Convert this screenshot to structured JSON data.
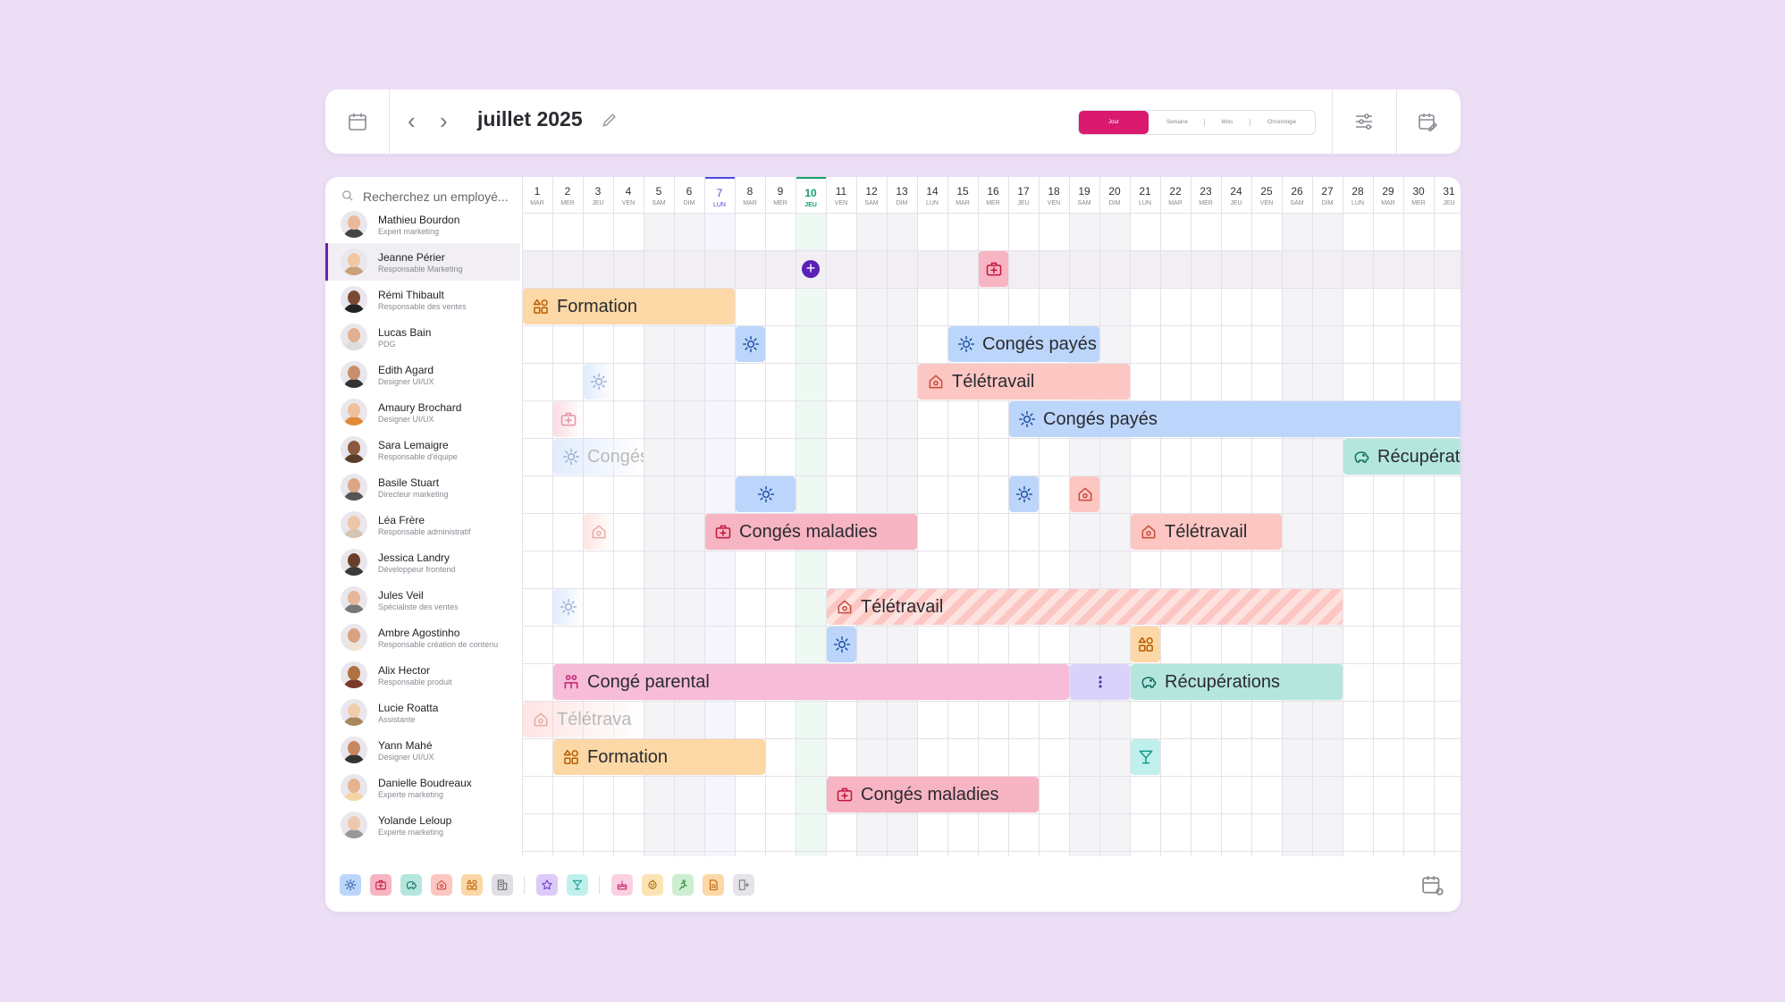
{
  "header": {
    "title": "juillet 2025",
    "views": [
      {
        "label": "Jour",
        "active": true
      },
      {
        "label": "Semaine",
        "active": false
      },
      {
        "label": "Mois",
        "active": false
      },
      {
        "label": "Chronologie",
        "active": false
      }
    ]
  },
  "search": {
    "placeholder": "Recherchez un employé..."
  },
  "days": [
    {
      "n": "1",
      "d": "MAR"
    },
    {
      "n": "2",
      "d": "MER"
    },
    {
      "n": "3",
      "d": "JEU"
    },
    {
      "n": "4",
      "d": "VEN"
    },
    {
      "n": "5",
      "d": "SAM"
    },
    {
      "n": "6",
      "d": "DIM"
    },
    {
      "n": "7",
      "d": "LUN"
    },
    {
      "n": "8",
      "d": "MAR"
    },
    {
      "n": "9",
      "d": "MER"
    },
    {
      "n": "10",
      "d": "JEU"
    },
    {
      "n": "11",
      "d": "VEN"
    },
    {
      "n": "12",
      "d": "SAM"
    },
    {
      "n": "13",
      "d": "DIM"
    },
    {
      "n": "14",
      "d": "LUN"
    },
    {
      "n": "15",
      "d": "MAR"
    },
    {
      "n": "16",
      "d": "MER"
    },
    {
      "n": "17",
      "d": "JEU"
    },
    {
      "n": "18",
      "d": "VEN"
    },
    {
      "n": "19",
      "d": "SAM"
    },
    {
      "n": "20",
      "d": "DIM"
    },
    {
      "n": "21",
      "d": "LUN"
    },
    {
      "n": "22",
      "d": "MAR"
    },
    {
      "n": "23",
      "d": "MER"
    },
    {
      "n": "24",
      "d": "JEU"
    },
    {
      "n": "25",
      "d": "VEN"
    },
    {
      "n": "26",
      "d": "SAM"
    },
    {
      "n": "27",
      "d": "DIM"
    },
    {
      "n": "28",
      "d": "LUN"
    },
    {
      "n": "29",
      "d": "MAR"
    },
    {
      "n": "30",
      "d": "MER"
    },
    {
      "n": "31",
      "d": "JEU"
    }
  ],
  "today_day": 10,
  "monday_marked": 7,
  "employees": [
    {
      "name": "Mathieu Bourdon",
      "role": "Expert marketing"
    },
    {
      "name": "Jeanne Périer",
      "role": "Responsable Marketing",
      "selected": true
    },
    {
      "name": "Rémi Thibault",
      "role": "Responsable des ventes"
    },
    {
      "name": "Lucas Bain",
      "role": "PDG"
    },
    {
      "name": "Edith Agard",
      "role": "Designer UI/UX"
    },
    {
      "name": "Amaury Brochard",
      "role": "Designer UI/UX"
    },
    {
      "name": "Sara Lemaigre",
      "role": "Responsable d'équipe"
    },
    {
      "name": "Basile Stuart",
      "role": "Directeur marketing"
    },
    {
      "name": "Léa Frère",
      "role": "Responsable administratif"
    },
    {
      "name": "Jessica Landry",
      "role": "Développeur frontend"
    },
    {
      "name": "Jules Veil",
      "role": "Spécialiste des ventes"
    },
    {
      "name": "Ambre Agostinho",
      "role": "Responsable création de contenu"
    },
    {
      "name": "Alix Hector",
      "role": "Responsable produit"
    },
    {
      "name": "Lucie Roatta",
      "role": "Assistante"
    },
    {
      "name": "Yann Mahé",
      "role": "Designer UI/UX"
    },
    {
      "name": "Danielle Boudreaux",
      "role": "Experte marketing"
    },
    {
      "name": "Yolande Leloup",
      "role": "Experte marketing"
    }
  ],
  "event_types": {
    "conges": {
      "bg": "#bcd6fb",
      "fg": "#1f4fa0",
      "icon": "sun-icon"
    },
    "maladie": {
      "bg": "#f7b4c2",
      "fg": "#c4143f",
      "icon": "medical-kit-icon"
    },
    "recup": {
      "bg": "#b4e6de",
      "fg": "#0f6e5f",
      "icon": "piggy-bank-icon"
    },
    "tele": {
      "bg": "#fcc6c2",
      "fg": "#c94a3c",
      "icon": "home-icon"
    },
    "formation": {
      "bg": "#fcd8a6",
      "fg": "#b85b00",
      "icon": "shapes-icon"
    },
    "parental": {
      "bg": "#f6bcd8",
      "fg": "#c0226e",
      "icon": "family-icon"
    },
    "cocktail": {
      "bg": "#bff0ec",
      "fg": "#13998c",
      "icon": "cocktail-icon"
    },
    "more": {
      "bg": "#d9d2fb",
      "fg": "#4a3aa8",
      "icon": "more-icon"
    }
  },
  "events": [
    {
      "row": 1,
      "start": 10,
      "end": 10,
      "type": "add"
    },
    {
      "row": 1,
      "start": 16,
      "end": 16,
      "type": "maladie"
    },
    {
      "row": 2,
      "start": 1,
      "end": 7,
      "type": "formation",
      "label": "Formation"
    },
    {
      "row": 3,
      "start": 8,
      "end": 8,
      "type": "conges"
    },
    {
      "row": 3,
      "start": 15,
      "end": 19,
      "type": "conges",
      "label": "Congés payés"
    },
    {
      "row": 4,
      "start": 3,
      "end": 3,
      "type": "conges",
      "faded": true
    },
    {
      "row": 4,
      "start": 14,
      "end": 20,
      "type": "tele",
      "label": "Télétravail"
    },
    {
      "row": 5,
      "start": 2,
      "end": 2,
      "type": "maladie",
      "faded": true
    },
    {
      "row": 5,
      "start": 17,
      "end": 31,
      "type": "conges",
      "label": "Congés payés"
    },
    {
      "row": 6,
      "start": 2,
      "end": 4,
      "type": "conges",
      "label": "Congés",
      "faded": true
    },
    {
      "row": 6,
      "start": 28,
      "end": 31,
      "type": "recup",
      "label": "Récupérat"
    },
    {
      "row": 7,
      "start": 8,
      "end": 9,
      "type": "conges"
    },
    {
      "row": 7,
      "start": 17,
      "end": 17,
      "type": "conges"
    },
    {
      "row": 7,
      "start": 19,
      "end": 19,
      "type": "tele"
    },
    {
      "row": 8,
      "start": 3,
      "end": 3,
      "type": "tele",
      "faded": true
    },
    {
      "row": 8,
      "start": 7,
      "end": 13,
      "type": "maladie",
      "label": "Congés maladies"
    },
    {
      "row": 8,
      "start": 21,
      "end": 25,
      "type": "tele",
      "label": "Télétravail"
    },
    {
      "row": 10,
      "start": 2,
      "end": 2,
      "type": "conges",
      "faded": true
    },
    {
      "row": 10,
      "start": 11,
      "end": 27,
      "type": "tele",
      "label": "Télétravail",
      "striped": true
    },
    {
      "row": 11,
      "start": 11,
      "end": 11,
      "type": "conges"
    },
    {
      "row": 11,
      "start": 21,
      "end": 21,
      "type": "formation"
    },
    {
      "row": 12,
      "start": 2,
      "end": 18,
      "type": "parental",
      "label": "Congé parental"
    },
    {
      "row": 12,
      "start": 19,
      "end": 20,
      "type": "more"
    },
    {
      "row": 12,
      "start": 21,
      "end": 27,
      "type": "recup",
      "label": "Récupérations"
    },
    {
      "row": 13,
      "start": 1,
      "end": 4,
      "type": "tele",
      "label": "Télétrava",
      "faded": true
    },
    {
      "row": 14,
      "start": 2,
      "end": 8,
      "type": "formation",
      "label": "Formation"
    },
    {
      "row": 14,
      "start": 21,
      "end": 21,
      "type": "cocktail"
    },
    {
      "row": 15,
      "start": 11,
      "end": 17,
      "type": "maladie",
      "label": "Congés maladies"
    }
  ],
  "legend": [
    [
      "conges",
      "maladie",
      "recup",
      "tele",
      "formation",
      "office"
    ],
    [
      "star",
      "cocktail"
    ],
    [
      "cake",
      "baby",
      "sport",
      "document",
      "exit"
    ]
  ],
  "legend_icons": {
    "office": {
      "bg": "#e0dee4",
      "fg": "#666",
      "icon": "office-icon"
    },
    "star": {
      "bg": "#dccbf8",
      "fg": "#6b3ec7",
      "icon": "star-icon"
    },
    "cake": {
      "bg": "#fbd0e0",
      "fg": "#c0226e",
      "icon": "cake-icon"
    },
    "baby": {
      "bg": "#fbe3b4",
      "fg": "#a66b00",
      "icon": "baby-icon"
    },
    "sport": {
      "bg": "#cdeed0",
      "fg": "#2a8a3a",
      "icon": "sport-icon"
    },
    "document": {
      "bg": "#fcd8a6",
      "fg": "#b85b00",
      "icon": "document-icon"
    },
    "exit": {
      "bg": "#e6e4ea",
      "fg": "#777",
      "icon": "exit-icon"
    }
  }
}
